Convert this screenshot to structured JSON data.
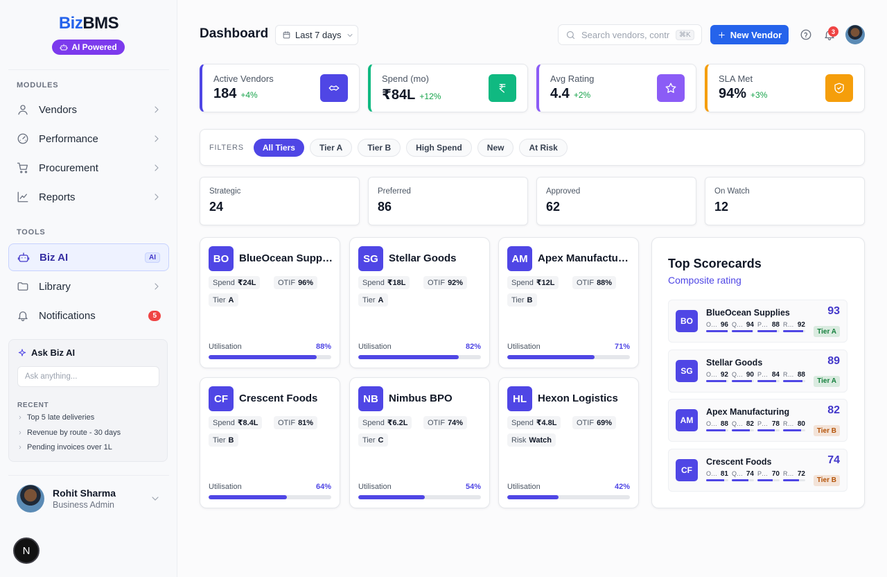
{
  "sidebar": {
    "brand_a": "Biz",
    "brand_b": "BMS",
    "badge": "AI Powered",
    "modules_heading": "MODULES",
    "modules": [
      "Vendors",
      "Performance",
      "Procurement",
      "Reports"
    ],
    "tools_heading": "TOOLS",
    "tools": [
      {
        "label": "Biz AI",
        "tag": "AI"
      },
      {
        "label": "Library"
      },
      {
        "label": "Notifications",
        "count": 5
      }
    ],
    "ask": {
      "title": "Ask Biz AI",
      "placeholder": "Ask anything...",
      "recent_heading": "RECENT",
      "recent": [
        "Top 5 late deliveries",
        "Revenue by route - 30 days",
        "Pending invoices over 1L"
      ]
    },
    "user": {
      "name": "Rohit Sharma",
      "role": "Business Admin"
    },
    "dev_badge": "N"
  },
  "header": {
    "title": "Dashboard",
    "range": "Last 7 days",
    "search": "Search vendors, contr",
    "shortcut": "⌘K",
    "button": "New Vendor",
    "notifications": 3
  },
  "kpis": [
    {
      "label": "Active Vendors",
      "value": "184",
      "delta": "+4%",
      "color": "#4f46e5"
    },
    {
      "label": "Spend (mo)",
      "value": "₹84L",
      "delta": "+12%",
      "color": "#10b981"
    },
    {
      "label": "Avg Rating",
      "value": "4.4",
      "delta": "+2%",
      "color": "#8b5cf6"
    },
    {
      "label": "SLA Met",
      "value": "94%",
      "delta": "+3%",
      "color": "#f59e0b"
    }
  ],
  "filters": {
    "label": "FILTERS",
    "chips": [
      "All Tiers",
      "Tier A",
      "Tier B",
      "High Spend",
      "New",
      "At Risk"
    ],
    "active": 0
  },
  "segments": [
    {
      "label": "Strategic",
      "value": 24
    },
    {
      "label": "Preferred",
      "value": 86
    },
    {
      "label": "Approved",
      "value": 62
    },
    {
      "label": "On Watch",
      "value": 12
    }
  ],
  "vendors": [
    {
      "initials": "BO",
      "name": "BlueOcean Supplies",
      "chips": [
        [
          "Spend",
          "₹24L"
        ],
        [
          "OTIF",
          "96%"
        ],
        [
          "Tier",
          "A"
        ]
      ],
      "utilisation": {
        "label": "Utilisation",
        "value": 88,
        "text": "88%"
      }
    },
    {
      "initials": "SG",
      "name": "Stellar Goods",
      "chips": [
        [
          "Spend",
          "₹18L"
        ],
        [
          "OTIF",
          "92%"
        ],
        [
          "Tier",
          "A"
        ]
      ],
      "utilisation": {
        "label": "Utilisation",
        "value": 82,
        "text": "82%"
      }
    },
    {
      "initials": "AM",
      "name": "Apex Manufacturing",
      "chips": [
        [
          "Spend",
          "₹12L"
        ],
        [
          "OTIF",
          "88%"
        ],
        [
          "Tier",
          "B"
        ]
      ],
      "utilisation": {
        "label": "Utilisation",
        "value": 71,
        "text": "71%"
      }
    },
    {
      "initials": "CF",
      "name": "Crescent Foods",
      "chips": [
        [
          "Spend",
          "₹8.4L"
        ],
        [
          "OTIF",
          "81%"
        ],
        [
          "Tier",
          "B"
        ]
      ],
      "utilisation": {
        "label": "Utilisation",
        "value": 64,
        "text": "64%"
      }
    },
    {
      "initials": "NB",
      "name": "Nimbus BPO",
      "chips": [
        [
          "Spend",
          "₹6.2L"
        ],
        [
          "OTIF",
          "74%"
        ],
        [
          "Tier",
          "C"
        ]
      ],
      "utilisation": {
        "label": "Utilisation",
        "value": 54,
        "text": "54%"
      }
    },
    {
      "initials": "HL",
      "name": "Hexon Logistics",
      "chips": [
        [
          "Spend",
          "₹4.8L"
        ],
        [
          "OTIF",
          "69%"
        ],
        [
          "Risk",
          "Watch"
        ]
      ],
      "utilisation": {
        "label": "Utilisation",
        "value": 42,
        "text": "42%"
      }
    }
  ],
  "scorecards": {
    "title": "Top Scorecards",
    "subtitle": "Composite rating",
    "items": [
      {
        "initials": "BO",
        "name": "BlueOcean Supplies",
        "score": 93,
        "tier": "Tier A",
        "tier_color": "#15803d",
        "metrics": [
          {
            "label": "O…",
            "value": 96
          },
          {
            "label": "Q…",
            "value": 94
          },
          {
            "label": "P…",
            "value": 88
          },
          {
            "label": "R…",
            "value": 92
          }
        ]
      },
      {
        "initials": "SG",
        "name": "Stellar Goods",
        "score": 89,
        "tier": "Tier A",
        "tier_color": "#15803d",
        "metrics": [
          {
            "label": "O…",
            "value": 92
          },
          {
            "label": "Q…",
            "value": 90
          },
          {
            "label": "P…",
            "value": 84
          },
          {
            "label": "R…",
            "value": 88
          }
        ]
      },
      {
        "initials": "AM",
        "name": "Apex Manufacturing",
        "score": 82,
        "tier": "Tier B",
        "tier_color": "#b45309",
        "metrics": [
          {
            "label": "O…",
            "value": 88
          },
          {
            "label": "Q…",
            "value": 82
          },
          {
            "label": "P…",
            "value": 78
          },
          {
            "label": "R…",
            "value": 80
          }
        ]
      },
      {
        "initials": "CF",
        "name": "Crescent Foods",
        "score": 74,
        "tier": "Tier B",
        "tier_color": "#b45309",
        "metrics": [
          {
            "label": "O…",
            "value": 81
          },
          {
            "label": "Q…",
            "value": 74
          },
          {
            "label": "P…",
            "value": 70
          },
          {
            "label": "R…",
            "value": 72
          }
        ]
      }
    ]
  }
}
